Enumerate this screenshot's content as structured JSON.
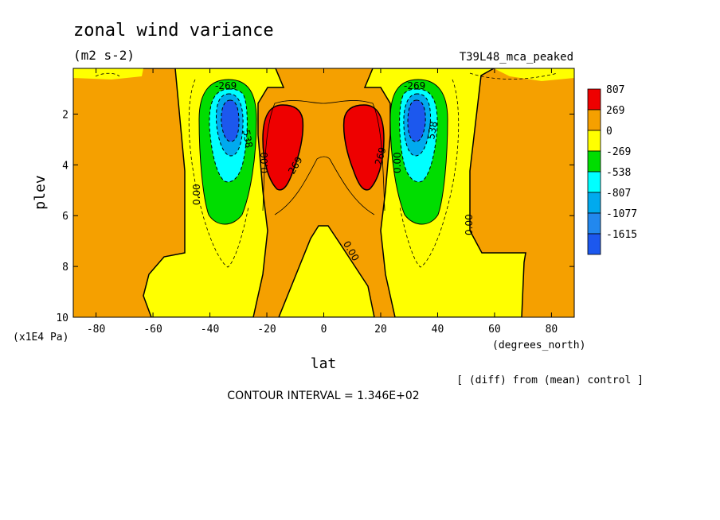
{
  "chart_data": {
    "type": "heatmap",
    "title": "zonal wind variance",
    "units": "(m2 s-2)",
    "experiment": "T39L48_mca_peaked",
    "xlabel": "lat",
    "x_units": "(degrees_north)",
    "ylabel": "plev",
    "y_units": "(x1E4 Pa)",
    "xlim": [
      -88,
      88
    ],
    "ylim": [
      10,
      0.2
    ],
    "x_ticks": [
      -80,
      -60,
      -40,
      -20,
      0,
      20,
      40,
      60,
      80
    ],
    "x_tick_labels": [
      "-80",
      "-60",
      "-40",
      "-20",
      "0",
      "20",
      "40",
      "60",
      "80"
    ],
    "y_ticks": [
      2,
      4,
      6,
      8,
      10
    ],
    "y_tick_labels": [
      "2",
      "4",
      "6",
      "8",
      "10"
    ],
    "colorbar": {
      "labels": [
        "807",
        "269",
        "0",
        "-269",
        "-538",
        "-807",
        "-1077",
        "-1615"
      ],
      "colors": [
        "#ee0000",
        "#f5a000",
        "#ffff00",
        "#00dd00",
        "#00ffff",
        "#00aaee",
        "#2288ee",
        "#1c58ee"
      ]
    },
    "contour_labels": [
      "-269",
      "-269",
      "538",
      "538",
      "0.00",
      "0.00",
      "0.00",
      "0.00",
      "0.00",
      "269",
      "269"
    ],
    "note": "[ (diff) from (mean) control ]",
    "contour_interval": "CONTOUR INTERVAL = 1.346E+02",
    "features": [
      {
        "name": "negative-minimum",
        "lat": -33,
        "plev": 2.3,
        "min_value": -1615
      },
      {
        "name": "negative-minimum",
        "lat": 33,
        "plev": 2.3,
        "min_value": -1615
      },
      {
        "name": "positive-maximum",
        "lat": -16,
        "plev": 3.1,
        "max_value": 807
      },
      {
        "name": "positive-maximum",
        "lat": 16,
        "plev": 3.1,
        "max_value": 807
      }
    ]
  }
}
